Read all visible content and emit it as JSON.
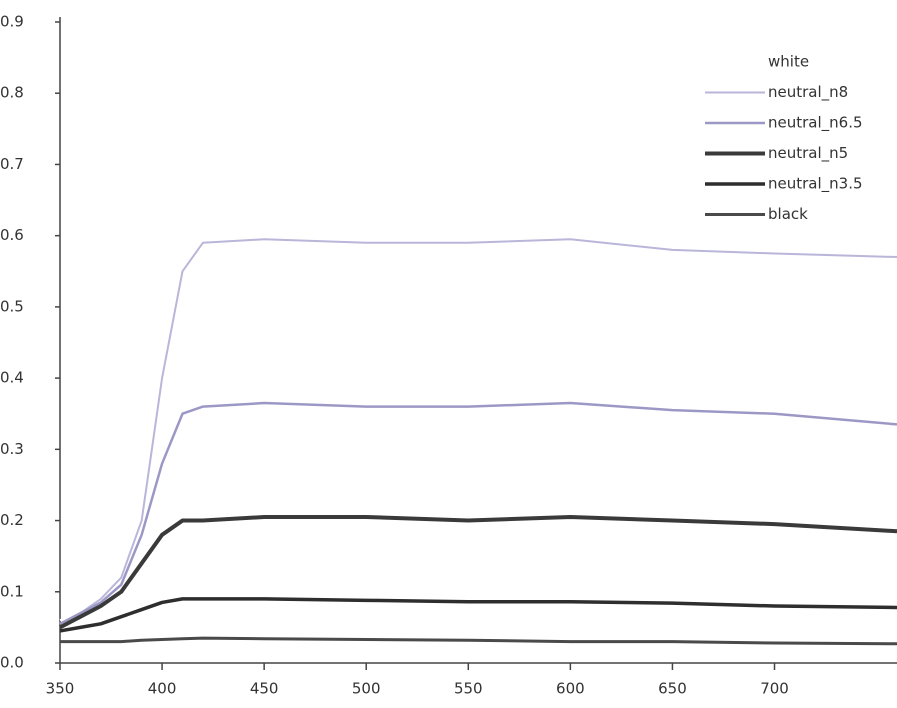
{
  "chart_data": {
    "type": "line",
    "x": [
      350,
      360,
      370,
      380,
      390,
      400,
      410,
      420,
      450,
      500,
      550,
      600,
      650,
      700,
      760
    ],
    "series": [
      {
        "name": "white",
        "color": "#ffffff",
        "width": 2,
        "values": [
          0.06,
          0.075,
          0.095,
          0.125,
          0.21,
          0.41,
          0.56,
          0.6,
          0.6,
          0.6,
          0.6,
          0.6,
          0.59,
          0.58,
          0.575
        ]
      },
      {
        "name": "neutral_n8",
        "color": "#b9b6da",
        "width": 2,
        "values": [
          0.055,
          0.07,
          0.09,
          0.12,
          0.2,
          0.4,
          0.55,
          0.59,
          0.595,
          0.59,
          0.59,
          0.595,
          0.58,
          0.575,
          0.57
        ]
      },
      {
        "name": "neutral_n6.5",
        "color": "#9c98c6",
        "width": 2.5,
        "values": [
          0.055,
          0.07,
          0.085,
          0.11,
          0.18,
          0.28,
          0.35,
          0.36,
          0.365,
          0.36,
          0.36,
          0.365,
          0.355,
          0.35,
          0.335
        ]
      },
      {
        "name": "neutral_n5",
        "color": "#3a3a3a",
        "width": 4,
        "values": [
          0.05,
          0.065,
          0.08,
          0.1,
          0.14,
          0.18,
          0.2,
          0.2,
          0.205,
          0.205,
          0.2,
          0.205,
          0.2,
          0.195,
          0.185
        ]
      },
      {
        "name": "neutral_n3.5",
        "color": "#2e2e2e",
        "width": 3.5,
        "values": [
          0.045,
          0.05,
          0.055,
          0.065,
          0.075,
          0.085,
          0.09,
          0.09,
          0.09,
          0.088,
          0.086,
          0.086,
          0.084,
          0.08,
          0.078
        ]
      },
      {
        "name": "black",
        "color": "#4a4a4a",
        "width": 3,
        "values": [
          0.03,
          0.03,
          0.03,
          0.03,
          0.032,
          0.033,
          0.034,
          0.035,
          0.034,
          0.033,
          0.032,
          0.03,
          0.03,
          0.028,
          0.027
        ]
      }
    ],
    "xlim": [
      350,
      760
    ],
    "xticks": [
      350,
      400,
      450,
      500,
      550,
      600,
      650,
      700
    ],
    "ylim": [
      0,
      0.9
    ],
    "yticks": [
      {
        "value": 0,
        "label": "0.0"
      },
      0.1,
      0.2,
      0.3,
      0.4,
      0.5,
      0.6,
      0.7,
      0.8,
      0.9
    ],
    "grid": false,
    "legend": "upper right"
  }
}
